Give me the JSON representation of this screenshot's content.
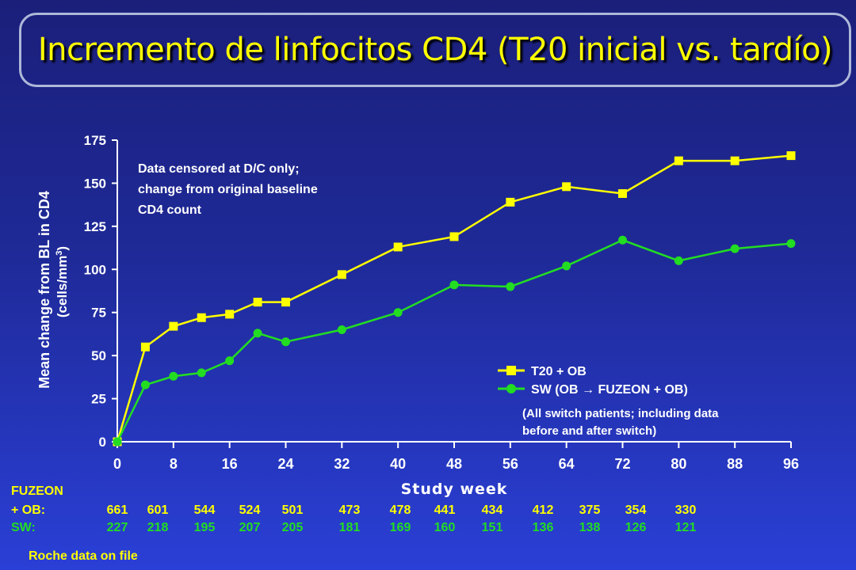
{
  "title": "Incremento de linfocitos CD4 (T20 inicial vs. tardío)",
  "colors": {
    "t20": "#ffff00",
    "sw": "#22dd22",
    "text": "#ffffff",
    "title": "#ffff00"
  },
  "chart_data": {
    "type": "line",
    "xlabel": "Study week",
    "ylabel": "Mean change from BL in CD4",
    "ylabel_unit": "(cells/mm",
    "ylabel_sup": "3",
    "ylabel_close": ")",
    "xlim": [
      0,
      96
    ],
    "ylim": [
      0,
      175
    ],
    "xticks": [
      0,
      8,
      16,
      24,
      32,
      40,
      48,
      56,
      64,
      72,
      80,
      88,
      96
    ],
    "yticks": [
      0,
      25,
      50,
      75,
      100,
      125,
      150,
      175
    ],
    "annotation": [
      "Data censored at D/C only;",
      "change from original baseline",
      "CD4 count"
    ],
    "series": [
      {
        "name": "T20 + OB",
        "marker": "square",
        "x": [
          0,
          4,
          8,
          12,
          16,
          20,
          24,
          32,
          40,
          48,
          56,
          64,
          72,
          80,
          88,
          96
        ],
        "y": [
          0,
          55,
          67,
          72,
          74,
          81,
          81,
          97,
          113,
          119,
          139,
          148,
          144,
          163,
          163,
          166
        ]
      },
      {
        "name": "SW",
        "name_parts": [
          "SW  (OB ",
          "→",
          " FUZEON + OB)"
        ],
        "marker": "circle",
        "x": [
          0,
          4,
          8,
          12,
          16,
          20,
          24,
          32,
          40,
          48,
          56,
          64,
          72,
          80,
          88,
          96
        ],
        "y": [
          0,
          33,
          38,
          40,
          47,
          63,
          58,
          65,
          75,
          91,
          90,
          102,
          117,
          105,
          112,
          115
        ]
      }
    ],
    "legend_note": [
      "(All switch patients; including data",
      "before and after switch)"
    ],
    "legend_position": "lower-right"
  },
  "patients_table": {
    "header": "FUZEON",
    "row1_label": "+ OB:",
    "row2_label": "SW:",
    "row1": [
      "661",
      "601",
      "544",
      "524",
      "501",
      "473",
      "478",
      "441",
      "434",
      "412",
      "375",
      "354",
      "330"
    ],
    "row2": [
      "227",
      "218",
      "195",
      "207",
      "205",
      "181",
      "169",
      "160",
      "151",
      "136",
      "138",
      "126",
      "121"
    ]
  },
  "footer": "Roche data on file"
}
